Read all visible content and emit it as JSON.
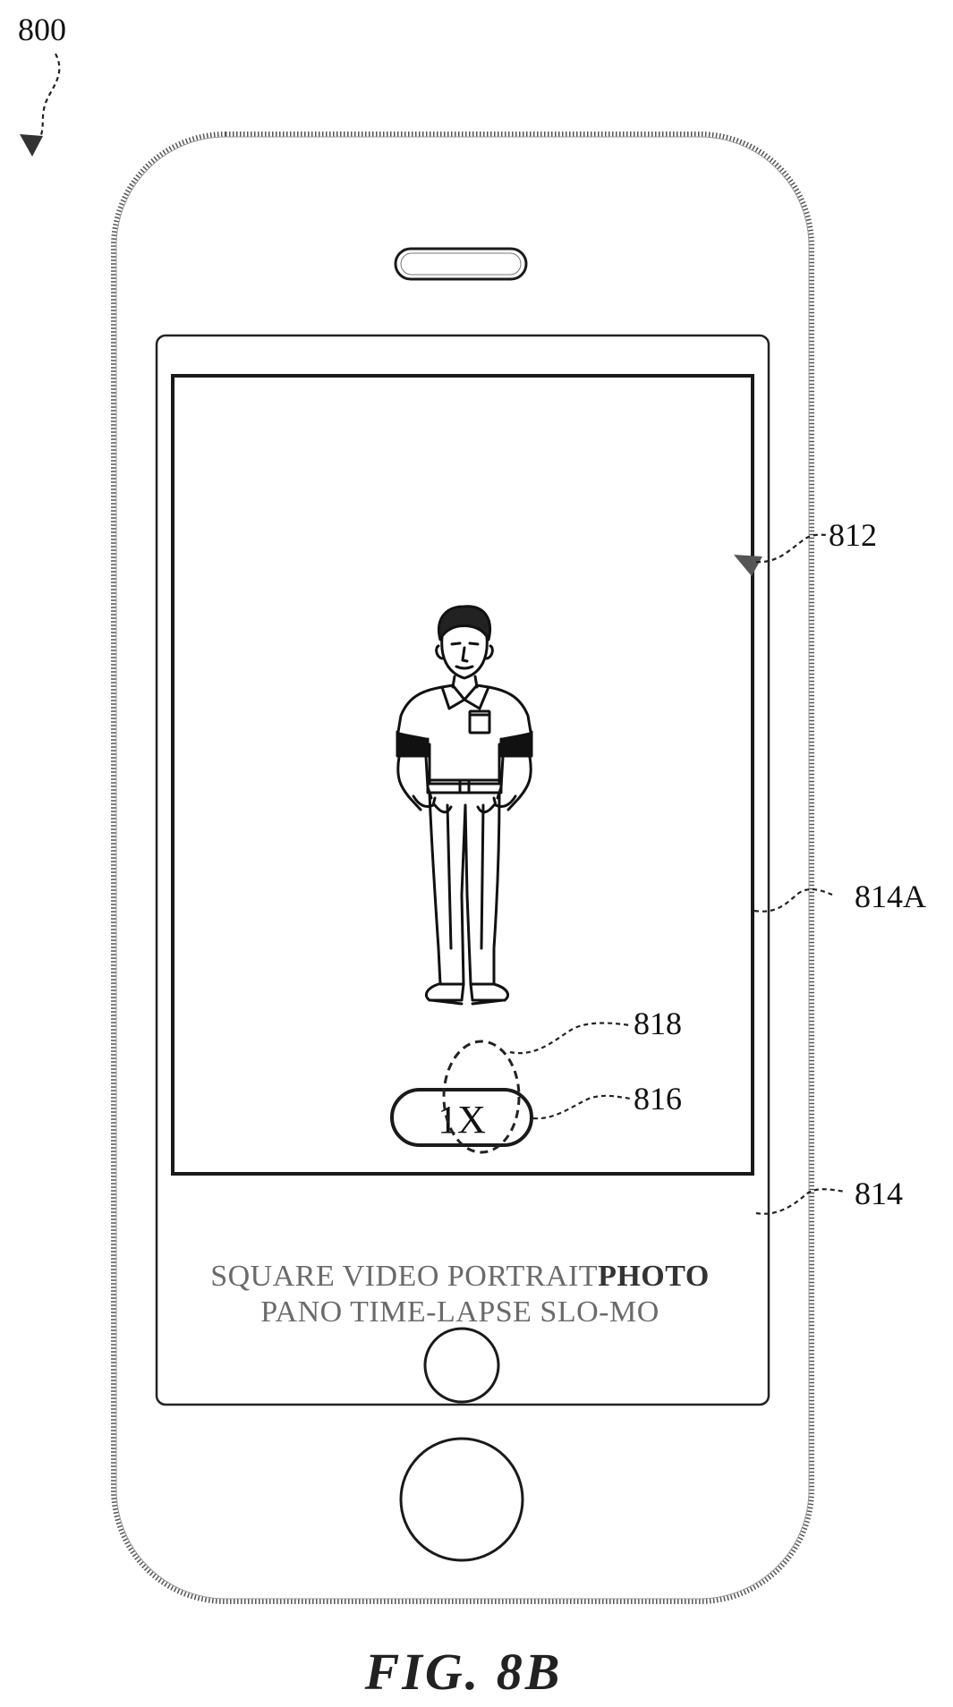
{
  "labels": {
    "figure_ref": "800",
    "viewfinder_ref": "812",
    "viewfinder_frame_ref": "814A",
    "zoom_affordance_ref": "816",
    "touch_contact_ref": "818",
    "screen_ref": "814"
  },
  "camera_ui": {
    "zoom_label": "1X",
    "mode_row_1": [
      "SQUARE",
      "VIDEO",
      "PORTRAIT"
    ],
    "active_mode": "PHOTO",
    "mode_row_2": "PANO TIME-LAPSE SLO-MO"
  },
  "caption": "FIG. 8B"
}
